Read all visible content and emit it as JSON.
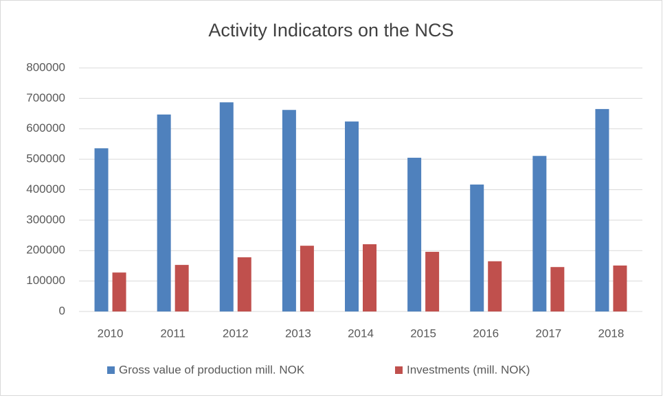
{
  "chart_data": {
    "type": "bar",
    "title": "Activity Indicators on the NCS",
    "categories": [
      "2010",
      "2011",
      "2012",
      "2013",
      "2014",
      "2015",
      "2016",
      "2017",
      "2018"
    ],
    "series": [
      {
        "name": "Gross value of production mill. NOK",
        "color": "#4f81bd",
        "values": [
          536000,
          647000,
          687000,
          662000,
          624000,
          505000,
          417000,
          511000,
          665000
        ]
      },
      {
        "name": "Investments (mill. NOK)",
        "color": "#c0504d",
        "values": [
          128000,
          153000,
          178000,
          216000,
          221000,
          196000,
          165000,
          146000,
          151000
        ]
      }
    ],
    "ylim": [
      0,
      800000
    ],
    "yticks": [
      0,
      100000,
      200000,
      300000,
      400000,
      500000,
      600000,
      700000,
      800000
    ],
    "grid": true,
    "legend": "bottom"
  }
}
